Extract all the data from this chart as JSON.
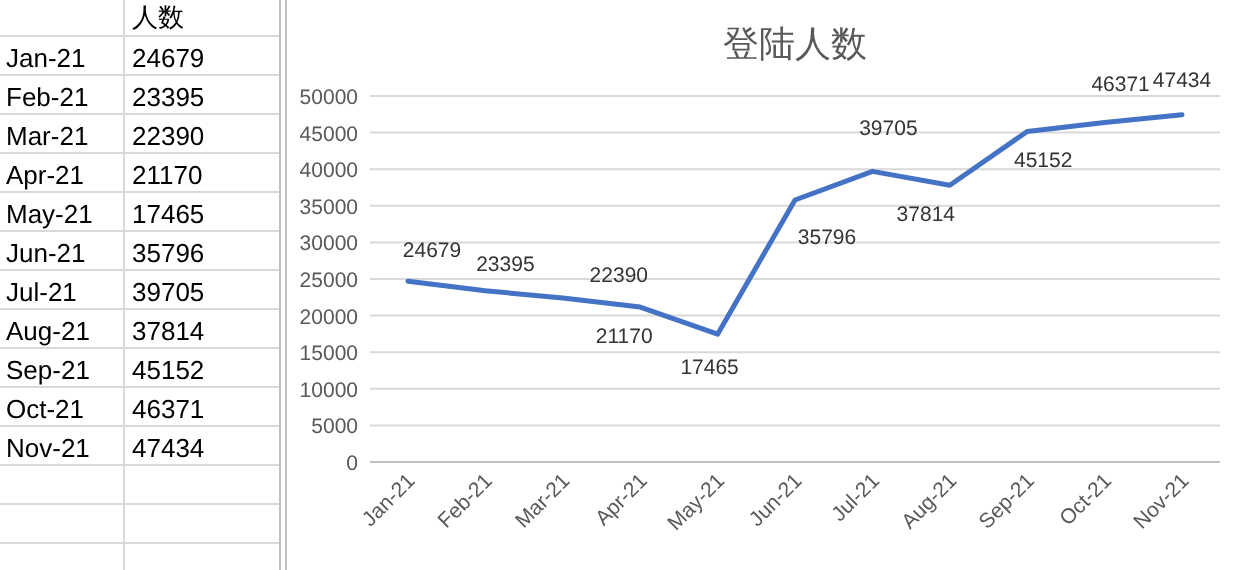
{
  "chart_data": [
    {
      "type": "other",
      "ylabel": "人数",
      "data_labels": true,
      "categories": [
        "Jan-21",
        "Feb-21",
        "Mar-21",
        "Apr-21",
        "May-21",
        "Jun-21",
        "Jul-21",
        "Aug-21",
        "Sep-21",
        "Oct-21",
        "Nov-21"
      ],
      "values": [
        24679,
        23395,
        22390,
        21170,
        17465,
        35796,
        39705,
        37814,
        45152,
        46371,
        47434
      ]
    },
    {
      "type": "line",
      "title": "登陆人数",
      "categories": [
        "Jan-21",
        "Feb-21",
        "Mar-21",
        "Apr-21",
        "May-21",
        "Jun-21",
        "Jul-21",
        "Aug-21",
        "Sep-21",
        "Oct-21",
        "Nov-21"
      ],
      "series": [
        {
          "color": "#4472c4",
          "values": [
            24679,
            23395,
            22390,
            21170,
            17465,
            35796,
            39705,
            37814,
            45152,
            46371,
            47434
          ]
        }
      ],
      "ylim": [
        0,
        50000
      ],
      "yticks": [
        0,
        5000,
        10000,
        15000,
        20000,
        25000,
        30000,
        35000,
        40000,
        45000,
        50000
      ],
      "grid": "y",
      "data_labels": true,
      "marker": "none",
      "line_style": "solid"
    }
  ]
}
